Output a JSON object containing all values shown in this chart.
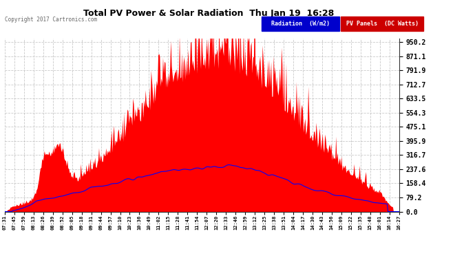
{
  "title": "Total PV Power & Solar Radiation  Thu Jan 19  16:28",
  "copyright": "Copyright 2017 Cartronics.com",
  "background_color": "#ffffff",
  "plot_bg_color": "#ffffff",
  "grid_color": "#bbbbbb",
  "yticks": [
    0.0,
    79.2,
    158.4,
    237.6,
    316.7,
    395.9,
    475.1,
    554.3,
    633.5,
    712.7,
    791.9,
    871.1,
    950.2
  ],
  "ymax": 970,
  "legend_radiation_text": "Radiation  (W/m2)",
  "legend_pv_text": "PV Panels  (DC Watts)",
  "legend_rad_bg": "#0000cc",
  "legend_pv_bg": "#cc0000",
  "fill_color": "#ff0000",
  "line_color": "#0000ff",
  "xtick_labels": [
    "07:31",
    "07:45",
    "07:59",
    "08:13",
    "08:26",
    "08:39",
    "08:52",
    "09:05",
    "09:18",
    "09:31",
    "09:44",
    "09:57",
    "10:10",
    "10:23",
    "10:36",
    "10:49",
    "11:02",
    "11:15",
    "11:28",
    "11:41",
    "11:54",
    "12:07",
    "12:20",
    "12:33",
    "12:46",
    "12:59",
    "13:12",
    "13:25",
    "13:38",
    "13:51",
    "14:04",
    "14:17",
    "14:30",
    "14:43",
    "14:56",
    "15:09",
    "15:22",
    "15:35",
    "15:48",
    "16:01",
    "16:14",
    "16:27"
  ]
}
